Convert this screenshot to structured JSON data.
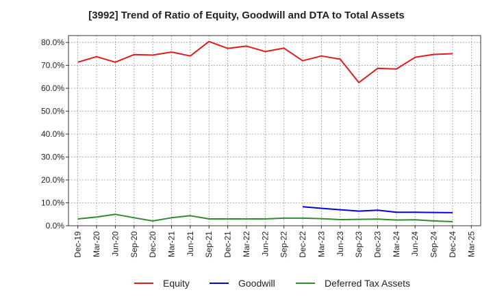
{
  "chart_data": {
    "type": "line",
    "title": "[3992]  Trend of Ratio of Equity, Goodwill and DTA to Total Assets",
    "xlabel": "",
    "ylabel": "",
    "ylim": [
      0,
      83
    ],
    "yticks": [
      "0.0%",
      "10.0%",
      "20.0%",
      "30.0%",
      "40.0%",
      "50.0%",
      "60.0%",
      "70.0%",
      "80.0%"
    ],
    "ytick_values": [
      0,
      10,
      20,
      30,
      40,
      50,
      60,
      70,
      80
    ],
    "categories": [
      "Dec-19",
      "Mar-20",
      "Jun-20",
      "Sep-20",
      "Dec-20",
      "Mar-21",
      "Jun-21",
      "Sep-21",
      "Dec-21",
      "Mar-22",
      "Jun-22",
      "Sep-22",
      "Dec-22",
      "Mar-23",
      "Jun-23",
      "Sep-23",
      "Dec-23",
      "Mar-24",
      "Jun-24",
      "Sep-24",
      "Dec-24",
      "Mar-25"
    ],
    "grid": true,
    "legend_position": "bottom",
    "series": [
      {
        "name": "Equity",
        "color": "#e31a1c",
        "values": [
          71.4,
          73.8,
          71.4,
          74.7,
          74.5,
          75.8,
          74.1,
          80.4,
          77.4,
          78.4,
          76.0,
          77.5,
          72.0,
          74.1,
          72.7,
          62.5,
          68.7,
          68.4,
          73.5,
          74.8,
          75.1,
          null
        ]
      },
      {
        "name": "Goodwill",
        "color": "#0000e0",
        "values": [
          null,
          null,
          null,
          null,
          null,
          null,
          null,
          null,
          null,
          null,
          null,
          null,
          8.3,
          7.6,
          7.0,
          6.4,
          6.8,
          5.9,
          5.9,
          5.8,
          5.7,
          null
        ]
      },
      {
        "name": "Deferred Tax Assets",
        "color": "#2e8b2e",
        "values": [
          3.0,
          3.8,
          5.0,
          3.5,
          2.1,
          3.5,
          4.4,
          3.0,
          3.0,
          3.0,
          3.0,
          3.3,
          3.3,
          3.1,
          2.7,
          2.8,
          2.9,
          2.5,
          2.6,
          2.1,
          1.8,
          null
        ]
      }
    ]
  }
}
